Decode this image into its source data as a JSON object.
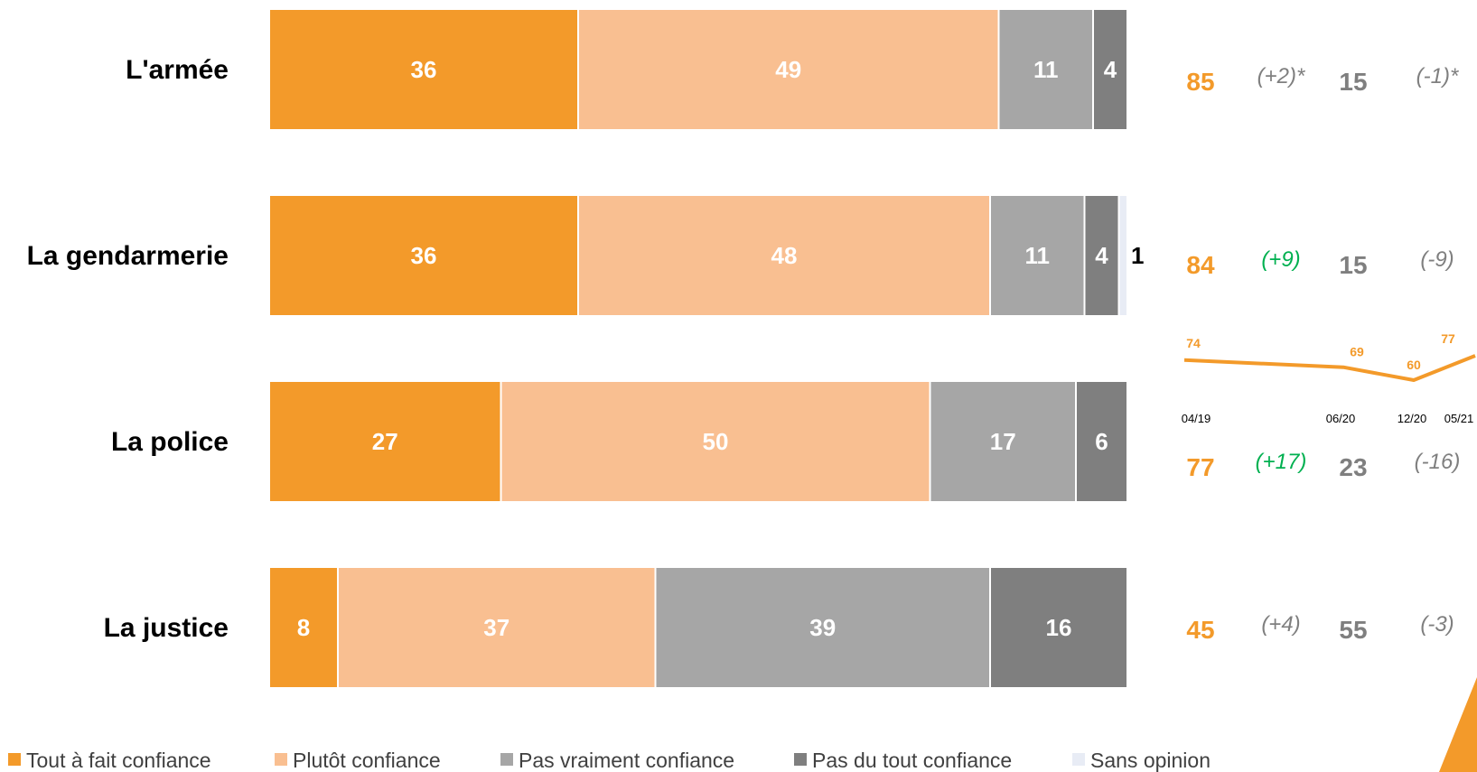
{
  "chart_data": {
    "type": "bar",
    "orientation": "horizontal",
    "stacked": true,
    "categories": [
      "L'armée",
      "La gendarmerie",
      "La police",
      "La justice"
    ],
    "series": [
      {
        "name": "Tout à fait confiance",
        "color": "#f39a2a",
        "values": [
          36,
          36,
          27,
          8
        ]
      },
      {
        "name": "Plutôt confiance",
        "color": "#f9bf91",
        "values": [
          49,
          48,
          50,
          37
        ]
      },
      {
        "name": "Pas vraiment confiance",
        "color": "#a6a6a6",
        "values": [
          11,
          11,
          17,
          39
        ]
      },
      {
        "name": "Pas du tout confiance",
        "color": "#7f7f7f",
        "values": [
          4,
          4,
          6,
          16
        ]
      },
      {
        "name": "Sans opinion",
        "color": "#e8ecf5",
        "values": [
          0,
          1,
          0,
          0
        ]
      }
    ],
    "summary": [
      {
        "confiance": "85",
        "confiance_delta": "(+2)*",
        "defiance": "15",
        "defiance_delta": "(-1)*",
        "delta_color": "#7f7f7f"
      },
      {
        "confiance": "84",
        "confiance_delta": "(+9)",
        "defiance": "15",
        "defiance_delta": "(-9)",
        "delta_color": "#00b050"
      },
      {
        "confiance": "77",
        "confiance_delta": "(+17)",
        "defiance": "23",
        "defiance_delta": "(-16)",
        "delta_color": "#00b050"
      },
      {
        "confiance": "45",
        "confiance_delta": "(+4)",
        "defiance": "55",
        "defiance_delta": "(-3)",
        "delta_color": "#7f7f7f"
      }
    ],
    "police_trend": {
      "type": "line",
      "x": [
        "04/19",
        "06/20",
        "12/20",
        "05/21"
      ],
      "values": [
        74,
        69,
        60,
        77
      ],
      "color": "#f39a2a"
    },
    "xlim": [
      0,
      100
    ],
    "legend_position": "bottom"
  }
}
